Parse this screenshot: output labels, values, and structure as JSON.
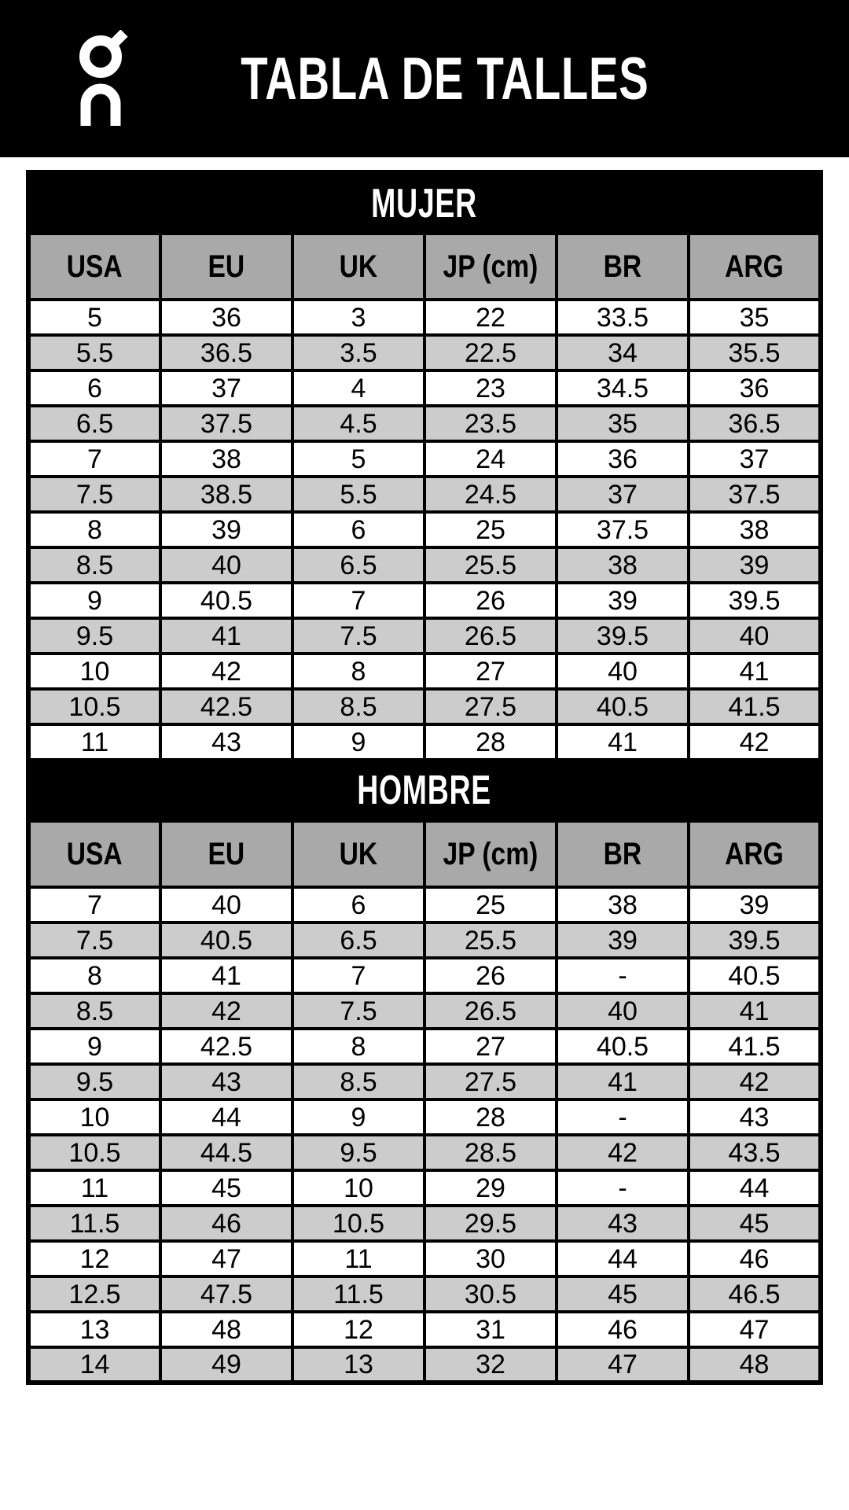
{
  "header": {
    "brand": "On",
    "title": "TABLA DE TALLES"
  },
  "tables": [
    {
      "section": "MUJER",
      "columns": [
        "USA",
        "EU",
        "UK",
        "JP (cm)",
        "BR",
        "ARG"
      ],
      "rows": [
        [
          "5",
          "36",
          "3",
          "22",
          "33.5",
          "35"
        ],
        [
          "5.5",
          "36.5",
          "3.5",
          "22.5",
          "34",
          "35.5"
        ],
        [
          "6",
          "37",
          "4",
          "23",
          "34.5",
          "36"
        ],
        [
          "6.5",
          "37.5",
          "4.5",
          "23.5",
          "35",
          "36.5"
        ],
        [
          "7",
          "38",
          "5",
          "24",
          "36",
          "37"
        ],
        [
          "7.5",
          "38.5",
          "5.5",
          "24.5",
          "37",
          "37.5"
        ],
        [
          "8",
          "39",
          "6",
          "25",
          "37.5",
          "38"
        ],
        [
          "8.5",
          "40",
          "6.5",
          "25.5",
          "38",
          "39"
        ],
        [
          "9",
          "40.5",
          "7",
          "26",
          "39",
          "39.5"
        ],
        [
          "9.5",
          "41",
          "7.5",
          "26.5",
          "39.5",
          "40"
        ],
        [
          "10",
          "42",
          "8",
          "27",
          "40",
          "41"
        ],
        [
          "10.5",
          "42.5",
          "8.5",
          "27.5",
          "40.5",
          "41.5"
        ],
        [
          "11",
          "43",
          "9",
          "28",
          "41",
          "42"
        ]
      ]
    },
    {
      "section": "HOMBRE",
      "columns": [
        "USA",
        "EU",
        "UK",
        "JP (cm)",
        "BR",
        "ARG"
      ],
      "rows": [
        [
          "7",
          "40",
          "6",
          "25",
          "38",
          "39"
        ],
        [
          "7.5",
          "40.5",
          "6.5",
          "25.5",
          "39",
          "39.5"
        ],
        [
          "8",
          "41",
          "7",
          "26",
          "-",
          "40.5"
        ],
        [
          "8.5",
          "42",
          "7.5",
          "26.5",
          "40",
          "41"
        ],
        [
          "9",
          "42.5",
          "8",
          "27",
          "40.5",
          "41.5"
        ],
        [
          "9.5",
          "43",
          "8.5",
          "27.5",
          "41",
          "42"
        ],
        [
          "10",
          "44",
          "9",
          "28",
          "-",
          "43"
        ],
        [
          "10.5",
          "44.5",
          "9.5",
          "28.5",
          "42",
          "43.5"
        ],
        [
          "11",
          "45",
          "10",
          "29",
          "-",
          "44"
        ],
        [
          "11.5",
          "46",
          "10.5",
          "29.5",
          "43",
          "45"
        ],
        [
          "12",
          "47",
          "11",
          "30",
          "44",
          "46"
        ],
        [
          "12.5",
          "47.5",
          "11.5",
          "30.5",
          "45",
          "46.5"
        ],
        [
          "13",
          "48",
          "12",
          "31",
          "46",
          "47"
        ],
        [
          "14",
          "49",
          "13",
          "32",
          "47",
          "48"
        ]
      ]
    }
  ],
  "colors": {
    "header_bg": "#000000",
    "section_band_bg": "#000000",
    "column_header_bg": "#a9a9a9",
    "row_bg": "#ffffff",
    "alt_row_bg": "#cccccc",
    "border": "#000000",
    "header_text": "#ffffff",
    "table_text": "#000000"
  },
  "icons": {
    "logo": "on-brand-logo"
  }
}
